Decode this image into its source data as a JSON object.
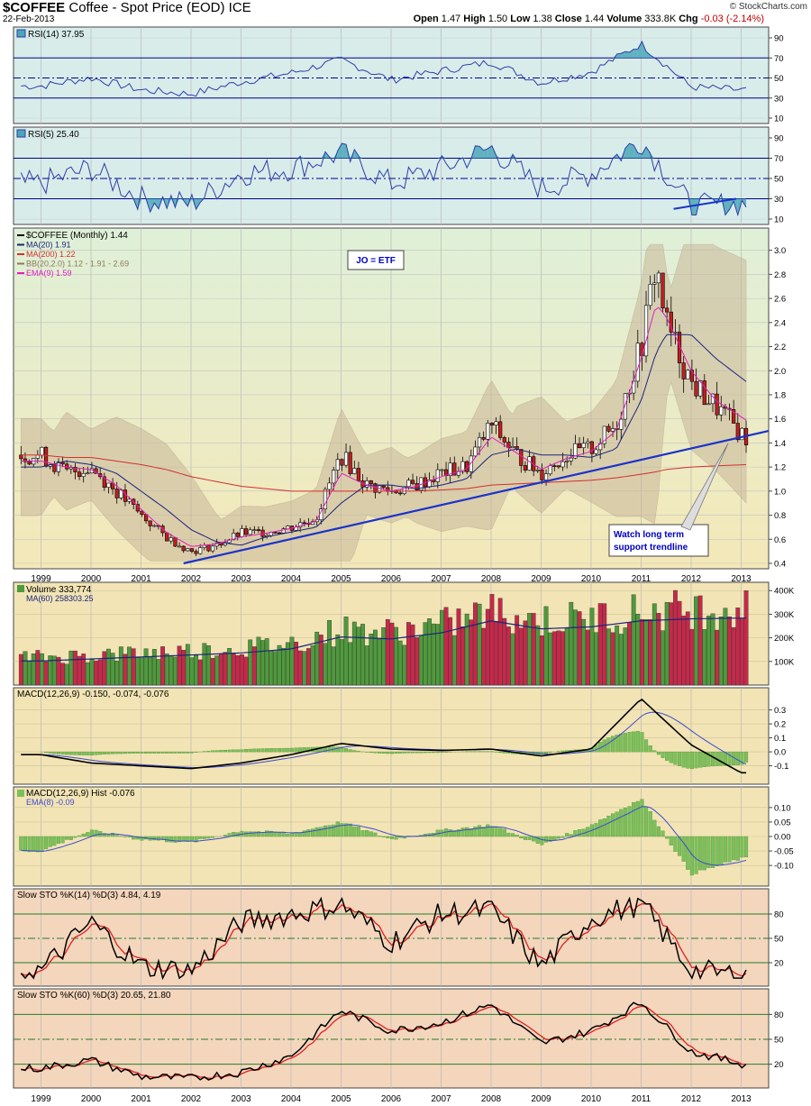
{
  "header": {
    "symbol": "$COFFEE",
    "name": "Coffee - Spot Price (EOD)",
    "exchange": "ICE",
    "date": "22-Feb-2013",
    "open_label": "Open",
    "open": "1.47",
    "high_label": "High",
    "high": "1.50",
    "low_label": "Low",
    "low": "1.38",
    "close_label": "Close",
    "close": "1.44",
    "volume_label": "Volume",
    "volume": "333.8K",
    "chg_label": "Chg",
    "chg": "-0.03 (-2.14%)",
    "brand": "© StockCharts.com"
  },
  "colors": {
    "up": "#3a8a3a",
    "down": "#c8284a",
    "ma20": "#1a237e",
    "ma200": "#d32f2f",
    "ema9": "#e020c0",
    "bb": "#c9b79a",
    "trend": "#1a33cc",
    "rsi_fill": "#4ba7b8"
  },
  "x_axis": {
    "years": [
      "1999",
      "2000",
      "2001",
      "2002",
      "2003",
      "2004",
      "2005",
      "2006",
      "2007",
      "2008",
      "2009",
      "2010",
      "2011",
      "2012",
      "2013"
    ]
  },
  "panels": {
    "rsi14": {
      "label": "RSI(14) 37.95",
      "ticks": [
        "90",
        "70",
        "50",
        "30",
        "10"
      ]
    },
    "rsi5": {
      "label": "RSI(5) 25.40",
      "ticks": [
        "90",
        "70",
        "50",
        "30",
        "10"
      ]
    },
    "price": {
      "legend": [
        "$COFFEE (Monthly) 1.44",
        "MA(20) 1.91",
        "MA(200) 1.22",
        "BB(20,2.0) 1.12 - 1.91 - 2.69",
        "EMA(9) 1.59"
      ],
      "ticks": [
        "3.0",
        "2.8",
        "2.6",
        "2.4",
        "2.2",
        "2.0",
        "1.8",
        "1.6",
        "1.4",
        "1.2",
        "1.0",
        "0.8",
        "0.6",
        "0.4"
      ],
      "note_etf": "JO = ETF",
      "note_trend_1": "Watch long term",
      "note_trend_2": "support trendline"
    },
    "volume": {
      "label": "Volume 333,774",
      "ma_label": "MA(60) 258303.25",
      "ticks": [
        "400K",
        "300K",
        "200K",
        "100K"
      ]
    },
    "macd1": {
      "label": "MACD(12,26,9) -0.150, -0.074, -0.076",
      "ticks": [
        "0.3",
        "0.2",
        "0.1",
        "0.0",
        "-0.1"
      ]
    },
    "macd2": {
      "label": "MACD(12,26,9) Hist -0.076",
      "ema_label": "EMA(8) -0.09",
      "ticks": [
        "0.10",
        "0.05",
        "0.00",
        "-0.05",
        "-0.10"
      ]
    },
    "sto14": {
      "label": "Slow STO %K(14) %D(3) 4.84, 4.19",
      "ticks": [
        "80",
        "50",
        "20"
      ]
    },
    "sto60": {
      "label": "Slow STO %K(60) %D(3) 20.65, 21.80",
      "ticks": [
        "80",
        "50",
        "20"
      ]
    }
  },
  "chart_data": [
    {
      "type": "line",
      "title": "RSI(14)",
      "x": [
        1999,
        2000,
        2001,
        2002,
        2003,
        2004,
        2005,
        2006,
        2007,
        2008,
        2009,
        2010,
        2011,
        2012,
        2013
      ],
      "values": [
        42,
        50,
        38,
        34,
        46,
        55,
        68,
        48,
        57,
        66,
        45,
        56,
        84,
        41,
        38
      ],
      "ylim": [
        10,
        90
      ]
    },
    {
      "type": "line",
      "title": "RSI(5)",
      "x": [
        1999,
        2000,
        2001,
        2002,
        2003,
        2004,
        2005,
        2006,
        2007,
        2008,
        2009,
        2010,
        2011,
        2012,
        2013
      ],
      "values": [
        45,
        60,
        30,
        25,
        55,
        60,
        75,
        45,
        60,
        80,
        40,
        55,
        88,
        22,
        25
      ],
      "ylim": [
        10,
        90
      ]
    },
    {
      "type": "line",
      "title": "$COFFEE (Monthly)",
      "x": [
        1999,
        1999.5,
        2000,
        2000.5,
        2001,
        2001.5,
        2002,
        2002.5,
        2003,
        2003.5,
        2004,
        2004.5,
        2005,
        2005.5,
        2006,
        2006.5,
        2007,
        2007.5,
        2008,
        2008.5,
        2009,
        2009.5,
        2010,
        2010.5,
        2011,
        2011.3,
        2011.5,
        2012,
        2012.5,
        2013.1
      ],
      "series": [
        {
          "name": "$COFFEE (Monthly) 1.44",
          "values": [
            1.3,
            1.15,
            1.2,
            1.0,
            0.8,
            0.62,
            0.5,
            0.55,
            0.65,
            0.66,
            0.7,
            0.78,
            1.3,
            1.05,
            1.0,
            1.05,
            1.15,
            1.2,
            1.55,
            1.3,
            1.15,
            1.3,
            1.35,
            1.55,
            2.2,
            2.9,
            2.4,
            1.9,
            1.7,
            1.44
          ]
        },
        {
          "name": "MA(20) 1.91",
          "values": [
            1.2,
            1.25,
            1.22,
            1.15,
            1.0,
            0.85,
            0.68,
            0.58,
            0.55,
            0.62,
            0.66,
            0.7,
            0.9,
            1.05,
            1.05,
            1.02,
            1.05,
            1.1,
            1.3,
            1.35,
            1.3,
            1.3,
            1.28,
            1.35,
            1.75,
            2.15,
            2.3,
            2.3,
            2.1,
            1.91
          ]
        },
        {
          "name": "MA(200) 1.22",
          "values": [
            1.3,
            1.28,
            1.28,
            1.25,
            1.22,
            1.18,
            1.12,
            1.08,
            1.04,
            1.02,
            1.0,
            1.0,
            1.0,
            1.0,
            1.0,
            1.0,
            1.01,
            1.02,
            1.05,
            1.06,
            1.07,
            1.08,
            1.09,
            1.11,
            1.14,
            1.16,
            1.18,
            1.2,
            1.21,
            1.22
          ]
        },
        {
          "name": "EMA(9) 1.59",
          "values": [
            1.25,
            1.2,
            1.18,
            1.05,
            0.85,
            0.66,
            0.54,
            0.56,
            0.62,
            0.65,
            0.69,
            0.75,
            1.15,
            1.05,
            1.0,
            1.04,
            1.12,
            1.18,
            1.45,
            1.32,
            1.18,
            1.27,
            1.33,
            1.5,
            2.1,
            2.55,
            2.45,
            2.0,
            1.75,
            1.59
          ]
        }
      ],
      "ylim": [
        0.4,
        3.1
      ]
    },
    {
      "type": "bar",
      "title": "Volume",
      "categories": [
        "1999",
        "2000",
        "2001",
        "2002",
        "2003",
        "2004",
        "2005",
        "2006",
        "2007",
        "2008",
        "2009",
        "2010",
        "2011",
        "2012",
        "2013"
      ],
      "values": [
        120000,
        130000,
        140000,
        150000,
        160000,
        180000,
        240000,
        230000,
        260000,
        320000,
        280000,
        290000,
        320000,
        330000,
        333774
      ],
      "ylim": [
        0,
        420000
      ]
    },
    {
      "type": "line",
      "title": "MACD(12,26,9)",
      "x": [
        1999,
        2000,
        2001,
        2002,
        2003,
        2004,
        2005,
        2006,
        2007,
        2008,
        2009,
        2010,
        2011,
        2012,
        2013
      ],
      "values": [
        -0.02,
        -0.08,
        -0.1,
        -0.12,
        -0.08,
        -0.02,
        0.06,
        0.02,
        0.01,
        0.02,
        -0.03,
        0.02,
        0.38,
        0.05,
        -0.15
      ],
      "ylim": [
        -0.18,
        0.42
      ]
    },
    {
      "type": "line",
      "title": "MACD(12,26,9) Hist",
      "x": [
        1999,
        2000,
        2001,
        2002,
        2003,
        2004,
        2005,
        2006,
        2007,
        2008,
        2009,
        2010,
        2011,
        2012,
        2013
      ],
      "values": [
        -0.05,
        0.02,
        -0.01,
        -0.02,
        0.02,
        0.01,
        0.05,
        -0.01,
        0.02,
        0.04,
        -0.03,
        0.04,
        0.13,
        -0.13,
        -0.076
      ],
      "ylim": [
        -0.15,
        0.15
      ]
    },
    {
      "type": "line",
      "title": "Slow STO %K(14) %D(3)",
      "x": [
        1999,
        2000,
        2001,
        2002,
        2003,
        2004,
        2005,
        2006,
        2007,
        2008,
        2009,
        2010,
        2011,
        2012,
        2013
      ],
      "values": [
        10,
        70,
        15,
        10,
        70,
        80,
        92,
        45,
        80,
        85,
        15,
        75,
        93,
        10,
        4.84
      ],
      "ylim": [
        0,
        100
      ]
    },
    {
      "type": "line",
      "title": "Slow STO %K(60) %D(3)",
      "x": [
        1999,
        2000,
        2001,
        2002,
        2003,
        2004,
        2005,
        2006,
        2007,
        2008,
        2009,
        2010,
        2011,
        2012,
        2013
      ],
      "values": [
        15,
        25,
        5,
        3,
        10,
        30,
        85,
        60,
        70,
        92,
        45,
        60,
        95,
        35,
        20.65
      ],
      "ylim": [
        0,
        100
      ]
    }
  ]
}
